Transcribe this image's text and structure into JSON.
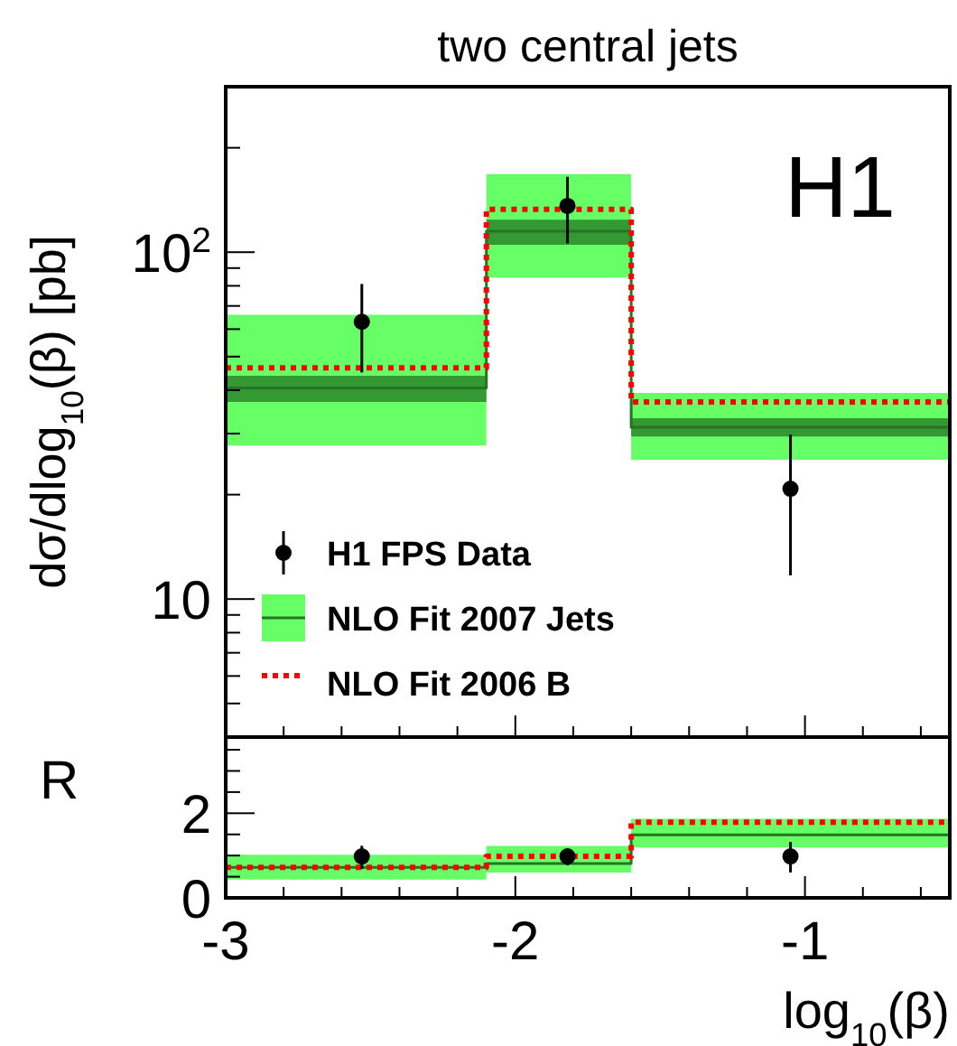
{
  "chart_data": [
    {
      "type": "step",
      "title": "two central jets",
      "ylabel": "dσ/dlog$_{10}$(β) [pb]",
      "annotations": [
        "H1"
      ],
      "log": "y",
      "legend": "bottom left",
      "tick_labels": "y",
      "xlim": [
        -3,
        -0.5
      ],
      "xticks": [
        -3,
        {
          "value": -2.8,
          "label": null
        },
        {
          "value": -2.6,
          "label": null
        },
        {
          "value": -2.4,
          "label": null
        },
        {
          "value": -2.2,
          "label": null
        },
        -2,
        {
          "value": -1.8,
          "label": null
        },
        {
          "value": -1.6,
          "label": null
        },
        {
          "value": -1.4,
          "label": null
        },
        {
          "value": -1.2,
          "label": null
        },
        -1,
        {
          "value": -0.8,
          "label": null
        },
        {
          "value": -0.6,
          "label": null
        }
      ],
      "ylim": [
        4,
        300
      ],
      "yticks": [
        {
          "value": 5,
          "label": null
        },
        {
          "value": 6,
          "label": null
        },
        {
          "value": 7,
          "label": null
        },
        {
          "value": 8,
          "label": null
        },
        {
          "value": 9,
          "label": null
        },
        10,
        {
          "value": 20,
          "label": null
        },
        {
          "value": 30,
          "label": null
        },
        {
          "value": 40,
          "label": null
        },
        {
          "value": 50,
          "label": null
        },
        {
          "value": 60,
          "label": null
        },
        {
          "value": 70,
          "label": null
        },
        {
          "value": 80,
          "label": null
        },
        {
          "value": 90,
          "label": null
        },
        {
          "value": 100,
          "label": "10$^{2}$"
        },
        {
          "value": 200,
          "label": null
        }
      ],
      "series": [
        {
          "color": "#339933",
          "x": [
            -3,
            -2.1,
            -1.6,
            -0.5
          ],
          "values": [
            null,
            null,
            null,
            null
          ],
          "lower": [
            37,
            105,
            29.4,
            29.4
          ],
          "upper": [
            44,
            124,
            33.2,
            33.2
          ]
        },
        {
          "name": "NLO Fit 2007 Jets",
          "color": "#267326",
          "x": [
            -3,
            -2.1,
            -1.6,
            -0.5
          ],
          "values": [
            40.6,
            115,
            31.3,
            31.3
          ],
          "lower": [
            27.7,
            84.5,
            25.2,
            25.2
          ],
          "upper": [
            66,
            168,
            39.3,
            39.3
          ]
        },
        {
          "name": "NLO Fit 2006 B",
          "color": "#ff0000",
          "line_style": "dotted",
          "x": [
            -3,
            -2.1,
            -1.6,
            -0.5
          ],
          "values": [
            46.4,
            133,
            37,
            37
          ]
        },
        {
          "type": "scatter",
          "name": "H1 FPS Data",
          "color": "#000000",
          "marker": "circle",
          "x": [
            -2.53,
            -1.82,
            -1.05
          ],
          "values": [
            63,
            136,
            20.8
          ],
          "errors": [
            [
              45,
              81
            ],
            [
              106,
              165
            ],
            [
              11.7,
              29.8
            ]
          ]
        }
      ]
    },
    {
      "type": "step",
      "ylabel": "R",
      "xlabel": "log$_{10}$(β)",
      "xlim": [
        -3,
        -0.5
      ],
      "xticks": [
        -3,
        {
          "value": -2.8,
          "label": null
        },
        {
          "value": -2.6,
          "label": null
        },
        {
          "value": -2.4,
          "label": null
        },
        {
          "value": -2.2,
          "label": null
        },
        -2,
        {
          "value": -1.8,
          "label": null
        },
        {
          "value": -1.6,
          "label": null
        },
        {
          "value": -1.4,
          "label": null
        },
        {
          "value": -1.2,
          "label": null
        },
        -1,
        {
          "value": -0.8,
          "label": null
        },
        {
          "value": -0.6,
          "label": null
        }
      ],
      "ylim": [
        0,
        3.8
      ],
      "yticks": [
        0,
        {
          "value": 0.5,
          "label": null
        },
        {
          "value": 1,
          "label": null
        },
        {
          "value": 1.5,
          "label": null
        },
        2,
        {
          "value": 2.5,
          "label": null
        },
        {
          "value": 3,
          "label": null
        },
        {
          "value": 3.5,
          "label": null
        }
      ],
      "series": [
        {
          "color": "#267326",
          "x": [
            -3,
            -2.1,
            -1.6,
            -0.5
          ],
          "values": [
            0.72,
            0.81,
            1.49,
            1.49
          ],
          "lower": [
            0.43,
            0.6,
            1.19,
            1.19
          ],
          "upper": [
            1.02,
            1.23,
            1.87,
            1.87
          ]
        },
        {
          "color": "#ff0000",
          "line_style": "dotted",
          "x": [
            -3,
            -2.1,
            -1.6,
            -0.5
          ],
          "values": [
            0.72,
            0.98,
            1.79,
            1.79
          ]
        },
        {
          "type": "scatter",
          "color": "#000000",
          "marker": "circle",
          "x": [
            -2.53,
            -1.82,
            -1.05
          ],
          "values": [
            0.98,
            0.98,
            0.98
          ],
          "errors": [
            [
              0.68,
              1.23
            ],
            [
              0.77,
              1.15
            ],
            [
              0.6,
              1.32
            ]
          ]
        }
      ]
    }
  ]
}
